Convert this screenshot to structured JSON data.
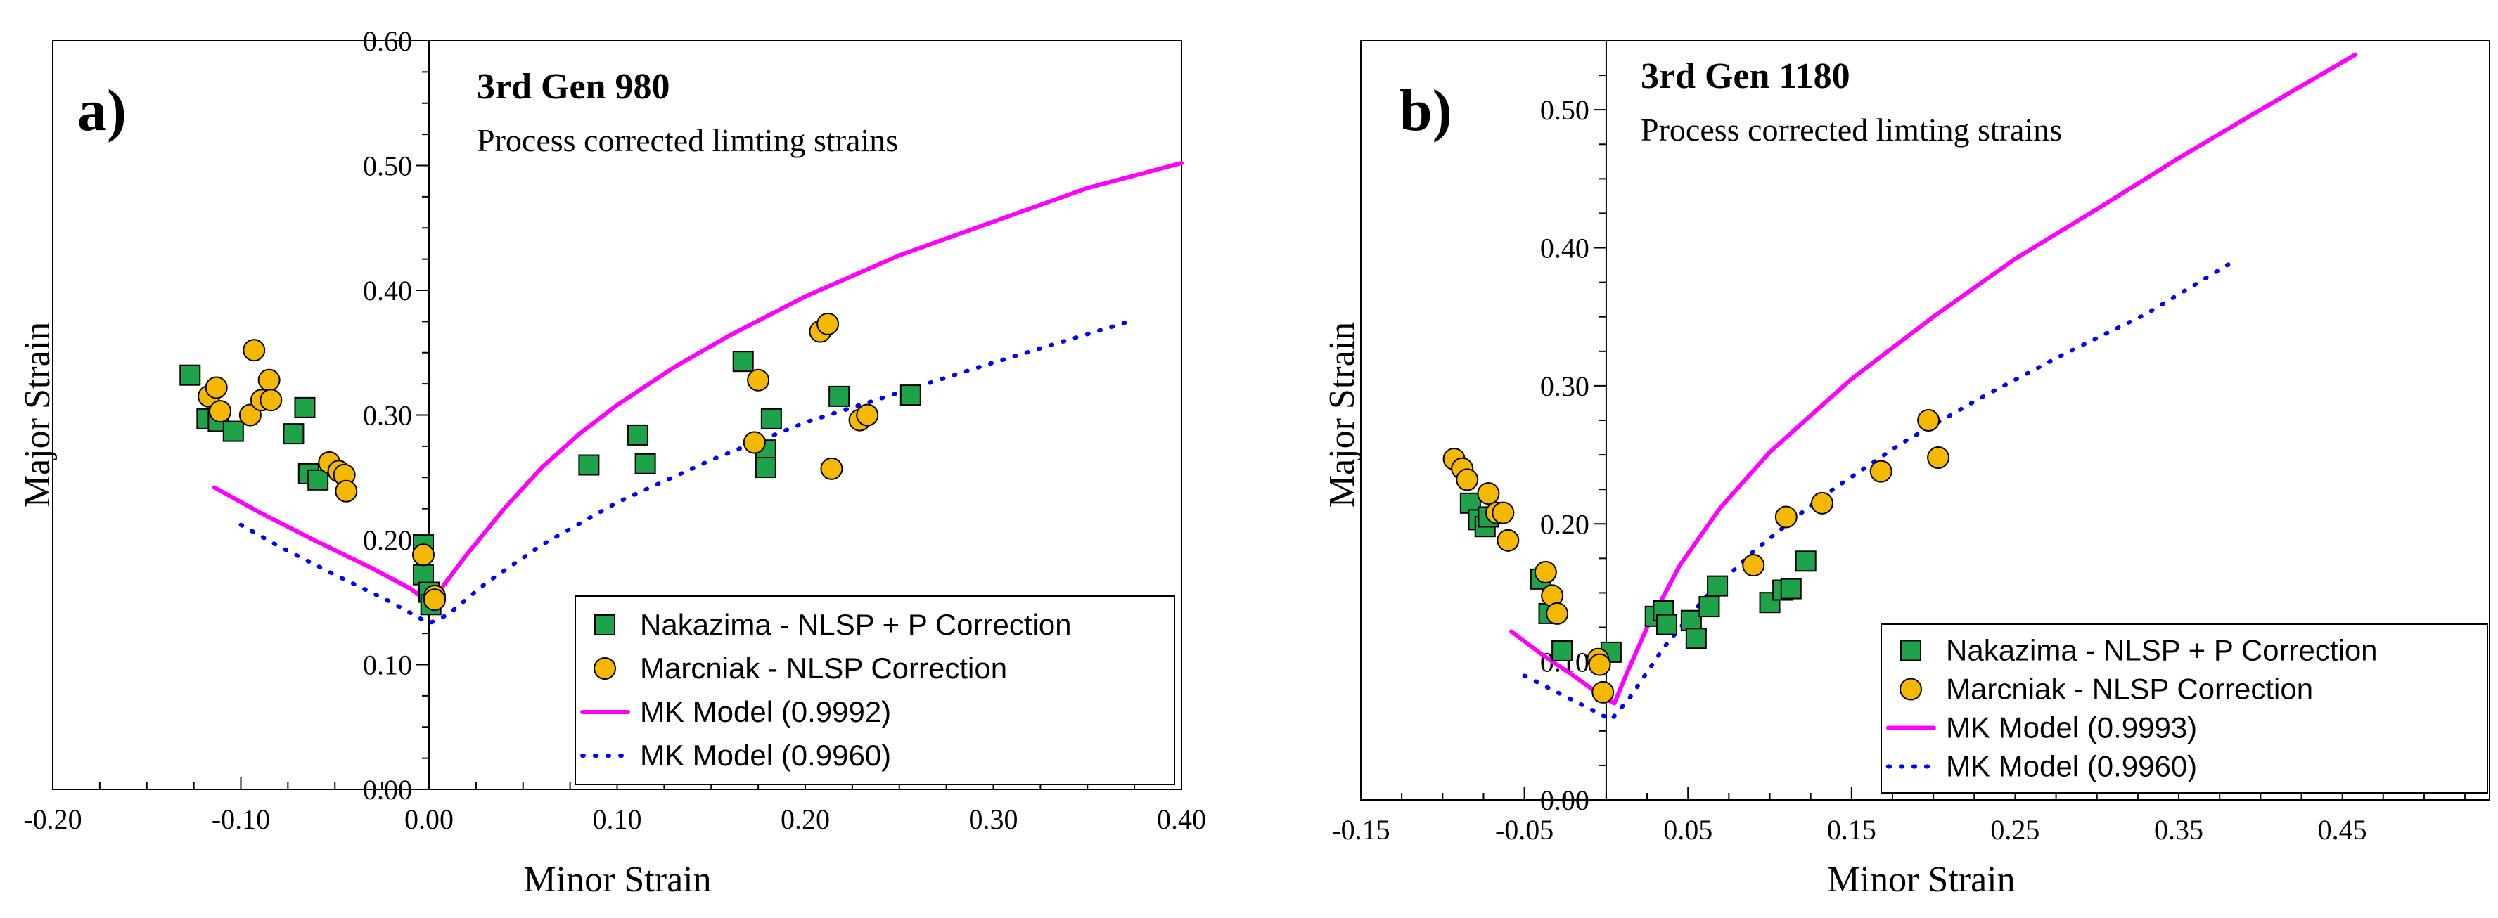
{
  "chart_data": [
    {
      "type": "scatter",
      "panel_label": "a)",
      "title": "3rd Gen 980",
      "subtitle": "Process corrected limting strains",
      "xlabel": "Minor Strain",
      "ylabel": "Major Strain",
      "xlim": [
        -0.2,
        0.4
      ],
      "ylim": [
        0.0,
        0.6
      ],
      "xticks": [
        -0.2,
        -0.1,
        0.0,
        0.1,
        0.2,
        0.3,
        0.4
      ],
      "yticks": [
        0.0,
        0.1,
        0.2,
        0.3,
        0.4,
        0.5,
        0.6
      ],
      "xtick_labels": [
        "-0.20",
        "-0.10",
        "0.00",
        "0.10",
        "0.20",
        "0.30",
        "0.40"
      ],
      "ytick_labels": [
        "0.00",
        "0.10",
        "0.20",
        "0.30",
        "0.40",
        "0.50",
        "0.60"
      ],
      "legend_position": "bottom-right",
      "series": [
        {
          "name": "Nakazima - NLSP + P Correction",
          "kind": "marker-square",
          "color": "#1ea34a",
          "points": [
            [
              -0.127,
              0.332
            ],
            [
              -0.118,
              0.297
            ],
            [
              -0.112,
              0.295
            ],
            [
              -0.104,
              0.287
            ],
            [
              -0.072,
              0.285
            ],
            [
              -0.066,
              0.306
            ],
            [
              -0.064,
              0.253
            ],
            [
              -0.059,
              0.248
            ],
            [
              -0.003,
              0.196
            ],
            [
              -0.003,
              0.172
            ],
            [
              0.0,
              0.158
            ],
            [
              0.001,
              0.148
            ],
            [
              0.085,
              0.26
            ],
            [
              0.111,
              0.284
            ],
            [
              0.115,
              0.261
            ],
            [
              0.167,
              0.343
            ],
            [
              0.179,
              0.272
            ],
            [
              0.179,
              0.258
            ],
            [
              0.182,
              0.297
            ],
            [
              0.218,
              0.315
            ],
            [
              0.256,
              0.316
            ]
          ]
        },
        {
          "name": "Marcniak - NLSP Correction",
          "kind": "marker-circle",
          "color": "#f5b800",
          "points": [
            [
              -0.117,
              0.315
            ],
            [
              -0.113,
              0.322
            ],
            [
              -0.111,
              0.303
            ],
            [
              -0.093,
              0.352
            ],
            [
              -0.095,
              0.3
            ],
            [
              -0.089,
              0.312
            ],
            [
              -0.085,
              0.328
            ],
            [
              -0.084,
              0.312
            ],
            [
              -0.053,
              0.262
            ],
            [
              -0.048,
              0.255
            ],
            [
              -0.045,
              0.252
            ],
            [
              -0.044,
              0.239
            ],
            [
              -0.003,
              0.188
            ],
            [
              0.003,
              0.155
            ],
            [
              0.003,
              0.152
            ],
            [
              0.173,
              0.278
            ],
            [
              0.175,
              0.328
            ],
            [
              0.208,
              0.367
            ],
            [
              0.212,
              0.373
            ],
            [
              0.214,
              0.257
            ],
            [
              0.229,
              0.296
            ],
            [
              0.233,
              0.3
            ]
          ]
        },
        {
          "name": "MK Model (0.9992)",
          "kind": "line-solid",
          "color": "#ff00ff",
          "points": [
            [
              -0.114,
              0.242
            ],
            [
              -0.09,
              0.222
            ],
            [
              -0.06,
              0.199
            ],
            [
              -0.03,
              0.177
            ],
            [
              -0.01,
              0.161
            ],
            [
              0.0,
              0.15
            ],
            [
              0.005,
              0.158
            ],
            [
              0.02,
              0.188
            ],
            [
              0.04,
              0.225
            ],
            [
              0.06,
              0.258
            ],
            [
              0.08,
              0.285
            ],
            [
              0.1,
              0.308
            ],
            [
              0.13,
              0.338
            ],
            [
              0.16,
              0.364
            ],
            [
              0.2,
              0.395
            ],
            [
              0.25,
              0.428
            ],
            [
              0.3,
              0.455
            ],
            [
              0.35,
              0.482
            ],
            [
              0.4,
              0.502
            ]
          ]
        },
        {
          "name": "MK Model (0.9960)",
          "kind": "line-dotted",
          "color": "#0000ff",
          "points": [
            [
              -0.1,
              0.212
            ],
            [
              -0.08,
              0.195
            ],
            [
              -0.05,
              0.172
            ],
            [
              -0.02,
              0.15
            ],
            [
              0.0,
              0.133
            ],
            [
              0.01,
              0.14
            ],
            [
              0.03,
              0.165
            ],
            [
              0.06,
              0.196
            ],
            [
              0.1,
              0.23
            ],
            [
              0.15,
              0.264
            ],
            [
              0.2,
              0.294
            ],
            [
              0.25,
              0.318
            ],
            [
              0.3,
              0.342
            ],
            [
              0.37,
              0.374
            ]
          ]
        }
      ]
    },
    {
      "type": "scatter",
      "panel_label": "b)",
      "title": "3rd Gen 1180",
      "subtitle": "Process corrected limting strains",
      "xlabel": "Minor Strain",
      "ylabel": "Major Strain",
      "xlim": [
        -0.15,
        0.54
      ],
      "ylim": [
        0.0,
        0.55
      ],
      "xticks": [
        -0.15,
        -0.05,
        0.05,
        0.15,
        0.25,
        0.35,
        0.45
      ],
      "yticks": [
        0.0,
        0.1,
        0.2,
        0.3,
        0.4,
        0.5
      ],
      "xtick_labels": [
        "-0.15",
        "-0.05",
        "0.05",
        "0.15",
        "0.25",
        "0.35",
        "0.45"
      ],
      "ytick_labels": [
        "0.00",
        "0.10",
        "0.20",
        "0.30",
        "0.40",
        "0.50"
      ],
      "legend_position": "bottom-right",
      "series": [
        {
          "name": "Nakazima - NLSP + P Correction",
          "kind": "marker-square",
          "color": "#1ea34a",
          "points": [
            [
              -0.083,
              0.215
            ],
            [
              -0.078,
              0.203
            ],
            [
              -0.074,
              0.198
            ],
            [
              -0.072,
              0.205
            ],
            [
              -0.04,
              0.16
            ],
            [
              -0.035,
              0.135
            ],
            [
              -0.027,
              0.108
            ],
            [
              0.003,
              0.107
            ],
            [
              0.03,
              0.133
            ],
            [
              0.035,
              0.137
            ],
            [
              0.037,
              0.127
            ],
            [
              0.052,
              0.13
            ],
            [
              0.055,
              0.117
            ],
            [
              0.063,
              0.14
            ],
            [
              0.068,
              0.155
            ],
            [
              0.1,
              0.143
            ],
            [
              0.108,
              0.152
            ],
            [
              0.113,
              0.153
            ],
            [
              0.122,
              0.173
            ]
          ]
        },
        {
          "name": "Marcniak - NLSP Correction",
          "kind": "marker-circle",
          "color": "#f5b800",
          "points": [
            [
              -0.093,
              0.247
            ],
            [
              -0.088,
              0.24
            ],
            [
              -0.085,
              0.232
            ],
            [
              -0.072,
              0.222
            ],
            [
              -0.067,
              0.208
            ],
            [
              -0.063,
              0.208
            ],
            [
              -0.06,
              0.188
            ],
            [
              -0.037,
              0.165
            ],
            [
              -0.033,
              0.148
            ],
            [
              -0.03,
              0.135
            ],
            [
              -0.005,
              0.102
            ],
            [
              -0.004,
              0.098
            ],
            [
              -0.002,
              0.078
            ],
            [
              0.09,
              0.17
            ],
            [
              0.11,
              0.205
            ],
            [
              0.132,
              0.215
            ],
            [
              0.168,
              0.238
            ],
            [
              0.197,
              0.275
            ],
            [
              0.203,
              0.248
            ]
          ]
        },
        {
          "name": "MK Model (0.9993)",
          "kind": "line-solid",
          "color": "#ff00ff",
          "points": [
            [
              -0.058,
              0.122
            ],
            [
              -0.04,
              0.106
            ],
            [
              -0.02,
              0.09
            ],
            [
              0.0,
              0.073
            ],
            [
              0.005,
              0.07
            ],
            [
              0.012,
              0.09
            ],
            [
              0.025,
              0.125
            ],
            [
              0.045,
              0.17
            ],
            [
              0.07,
              0.212
            ],
            [
              0.1,
              0.252
            ],
            [
              0.15,
              0.305
            ],
            [
              0.2,
              0.35
            ],
            [
              0.25,
              0.392
            ],
            [
              0.3,
              0.428
            ],
            [
              0.35,
              0.465
            ],
            [
              0.4,
              0.5
            ],
            [
              0.458,
              0.54
            ]
          ]
        },
        {
          "name": "MK Model (0.9960)",
          "kind": "line-dotted",
          "color": "#0000ff",
          "points": [
            [
              -0.05,
              0.09
            ],
            [
              -0.03,
              0.078
            ],
            [
              -0.01,
              0.066
            ],
            [
              0.003,
              0.058
            ],
            [
              0.015,
              0.075
            ],
            [
              0.035,
              0.11
            ],
            [
              0.06,
              0.146
            ],
            [
              0.09,
              0.18
            ],
            [
              0.13,
              0.218
            ],
            [
              0.18,
              0.258
            ],
            [
              0.23,
              0.292
            ],
            [
              0.28,
              0.323
            ],
            [
              0.33,
              0.352
            ],
            [
              0.386,
              0.392
            ]
          ]
        }
      ]
    }
  ]
}
